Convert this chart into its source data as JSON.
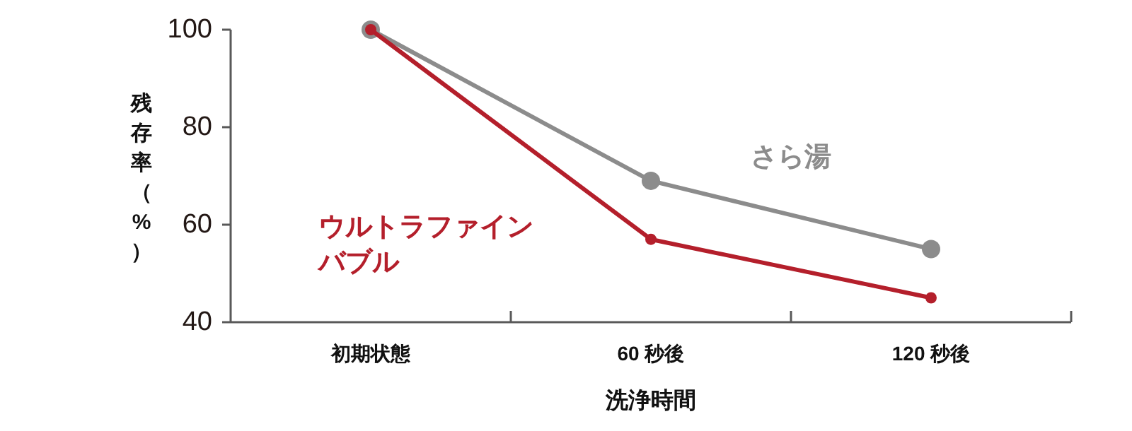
{
  "chart_data": {
    "type": "line",
    "xlabel": "洗浄時間",
    "ylabel": "残存率（%）",
    "categories": [
      "初期状態",
      "60 秒後",
      "120 秒後"
    ],
    "series": [
      {
        "name": "さら湯",
        "color": "#8c8c8c",
        "values": [
          100,
          69,
          55
        ]
      },
      {
        "name": "ウルトラファインバブル",
        "color": "#b41f2b",
        "values": [
          100,
          57,
          45
        ]
      }
    ],
    "ylim": [
      40,
      100
    ],
    "yticks": [
      40,
      60,
      80,
      100
    ],
    "grid": false,
    "legend": false,
    "marker": "circle",
    "line_style": "solid"
  }
}
